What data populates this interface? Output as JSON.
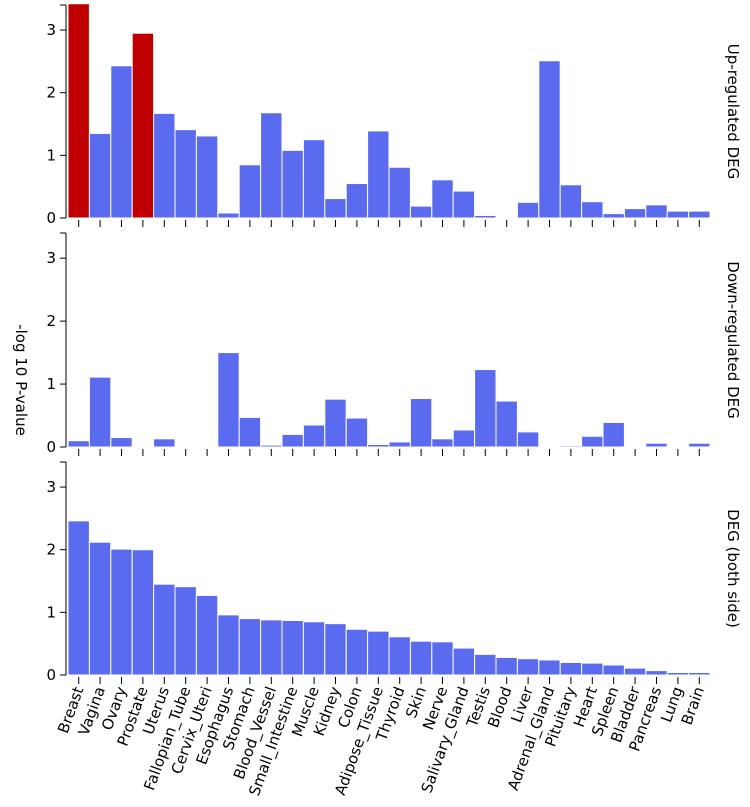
{
  "chart_data": {
    "type": "bar",
    "ylabel": "-log 10 P-value",
    "ylim": [
      0,
      3.4
    ],
    "yticks": [
      0,
      1,
      2,
      3
    ],
    "colors": {
      "default": "#5b6bef",
      "highlight": "#c00000"
    },
    "panels": [
      {
        "title": "Up-regulated DEG",
        "categories": [
          "Breast",
          "Vagina",
          "Ovary",
          "Prostate",
          "Uterus",
          "Fallopian_Tube",
          "Cervix_Uteri",
          "Esophagus",
          "Stomach",
          "Blood_Vessel",
          "Small_Intestine",
          "Muscle",
          "Kidney",
          "Colon",
          "Adipose_Tissue",
          "Thyroid",
          "Skin",
          "Nerve",
          "Salivary_Gland",
          "Testis",
          "Blood",
          "Liver",
          "Adrenal_Gland",
          "Pituitary",
          "Heart",
          "Spleen",
          "Bladder",
          "Pancreas",
          "Lung",
          "Brain"
        ],
        "values": [
          3.42,
          1.35,
          2.43,
          2.95,
          1.67,
          1.41,
          1.31,
          0.08,
          0.85,
          1.68,
          1.08,
          1.25,
          0.31,
          0.55,
          1.39,
          0.81,
          0.19,
          0.61,
          0.43,
          0.04,
          0.0,
          0.25,
          2.51,
          0.53,
          0.26,
          0.07,
          0.15,
          0.21,
          0.11,
          0.11
        ],
        "highlight": [
          "Breast",
          "Prostate"
        ]
      },
      {
        "title": "Down-regulated DEG",
        "categories": [
          "Breast",
          "Vagina",
          "Ovary",
          "Prostate",
          "Uterus",
          "Fallopian_Tube",
          "Cervix_Uteri",
          "Esophagus",
          "Stomach",
          "Blood_Vessel",
          "Small_Intestine",
          "Muscle",
          "Kidney",
          "Colon",
          "Adipose_Tissue",
          "Thyroid",
          "Skin",
          "Nerve",
          "Salivary_Gland",
          "Testis",
          "Blood",
          "Liver",
          "Adrenal_Gland",
          "Pituitary",
          "Heart",
          "Spleen",
          "Bladder",
          "Pancreas",
          "Lung",
          "Brain"
        ],
        "values": [
          0.1,
          1.11,
          0.15,
          0.0,
          0.13,
          0.0,
          0.0,
          1.5,
          0.47,
          0.03,
          0.2,
          0.35,
          0.76,
          0.46,
          0.04,
          0.08,
          0.77,
          0.13,
          0.27,
          1.23,
          0.73,
          0.24,
          0.0,
          0.02,
          0.17,
          0.39,
          0.0,
          0.06,
          0.0,
          0.06
        ],
        "highlight": []
      },
      {
        "title": "DEG (both side)",
        "categories": [
          "Breast",
          "Vagina",
          "Ovary",
          "Prostate",
          "Uterus",
          "Fallopian_Tube",
          "Cervix_Uteri",
          "Esophagus",
          "Stomach",
          "Blood_Vessel",
          "Small_Intestine",
          "Muscle",
          "Kidney",
          "Colon",
          "Adipose_Tissue",
          "Thyroid",
          "Skin",
          "Nerve",
          "Salivary_Gland",
          "Testis",
          "Blood",
          "Liver",
          "Adrenal_Gland",
          "Pituitary",
          "Heart",
          "Spleen",
          "Bladder",
          "Pancreas",
          "Lung",
          "Brain"
        ],
        "values": [
          2.46,
          2.12,
          2.01,
          2.0,
          1.45,
          1.41,
          1.27,
          0.96,
          0.9,
          0.88,
          0.87,
          0.85,
          0.82,
          0.73,
          0.7,
          0.61,
          0.54,
          0.53,
          0.43,
          0.33,
          0.28,
          0.26,
          0.24,
          0.2,
          0.19,
          0.16,
          0.11,
          0.07,
          0.04,
          0.04
        ],
        "highlight": []
      }
    ]
  }
}
